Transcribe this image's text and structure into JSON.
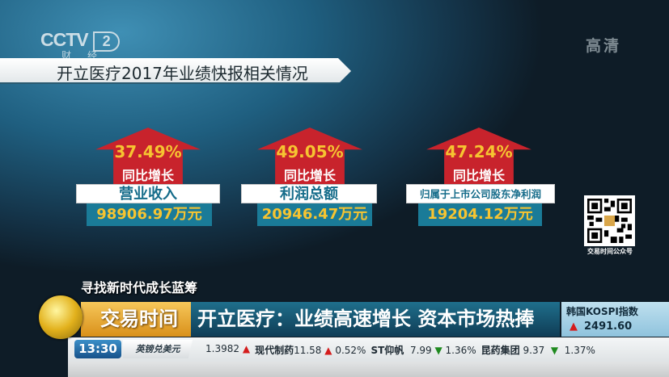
{
  "channel": {
    "logo": "CCTV",
    "number": "2",
    "subtitle": "财经",
    "hd_badge": "高清"
  },
  "title": "开立医疗2017年业绩快报相关情况",
  "cards": [
    {
      "growth": "37.49%",
      "growth_label": "同比增长",
      "metric": "营业收入",
      "value": "98906.97万元"
    },
    {
      "growth": "49.05%",
      "growth_label": "同比增长",
      "metric": "利润总额",
      "value": "20946.47万元"
    },
    {
      "growth": "47.24%",
      "growth_label": "同比增长",
      "metric": "归属于上市公司股东净利润",
      "value": "19204.12万元"
    }
  ],
  "qr": {
    "caption": "交易时间公众号"
  },
  "lower_third": {
    "subtitle": "寻找新时代成长蓝筹",
    "program": "交易时间",
    "headline": "开立医疗：业绩高速增长 资本市场热捧"
  },
  "index": {
    "name": "韩国KOSPI指数",
    "direction": "up",
    "value": "2491.60"
  },
  "ticker": {
    "time": "13:30",
    "pair": "英镑兑美元",
    "items": [
      {
        "name": "",
        "price": "1.3982",
        "dir": "▲",
        "change": ""
      },
      {
        "name": "现代制药",
        "price": "11.58",
        "dir": "▲",
        "change": "0.52%"
      },
      {
        "name": "ST仰帆",
        "price": "7.99",
        "dir": "▼",
        "change": "1.36%"
      },
      {
        "name": "昆药集团",
        "price": "9.37",
        "dir": "▼",
        "change": "1.37%"
      }
    ]
  },
  "colors": {
    "arrow_red": "#c8232c",
    "gold": "#f6c431",
    "teal": "#1a7b98",
    "up": "#d41c1c",
    "down": "#1f8a1f"
  }
}
